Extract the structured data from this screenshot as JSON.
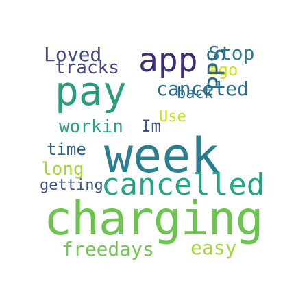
{
  "words": [
    {
      "text": "charging",
      "color": "#6cc44f"
    },
    {
      "text": "week",
      "color": "#2b7e8e"
    },
    {
      "text": "pay",
      "color": "#2a9c7e"
    },
    {
      "text": "app",
      "color": "#3f2d79"
    },
    {
      "text": "cancelled",
      "color": "#23a486"
    },
    {
      "text": "canceled",
      "color": "#2b6f8d"
    },
    {
      "text": "Loved",
      "color": "#3e4b88"
    },
    {
      "text": "tracks",
      "color": "#404788"
    },
    {
      "text": "Stop",
      "color": "#297a8e"
    },
    {
      "text": "ago",
      "color": "#d9e21a"
    },
    {
      "text": "back",
      "color": "#2a6e8e"
    },
    {
      "text": "workin",
      "color": "#2aa383"
    },
    {
      "text": "Im",
      "color": "#3b5489"
    },
    {
      "text": "time",
      "color": "#2c5e8c"
    },
    {
      "text": "long",
      "color": "#a7d536"
    },
    {
      "text": "getting",
      "color": "#39528a"
    },
    {
      "text": "Use",
      "color": "#c1df24"
    },
    {
      "text": "freedays",
      "color": "#74c553"
    },
    {
      "text": "easy",
      "color": "#9fd838"
    },
    {
      "text": "PPS",
      "color": "#2b6c8e"
    }
  ]
}
